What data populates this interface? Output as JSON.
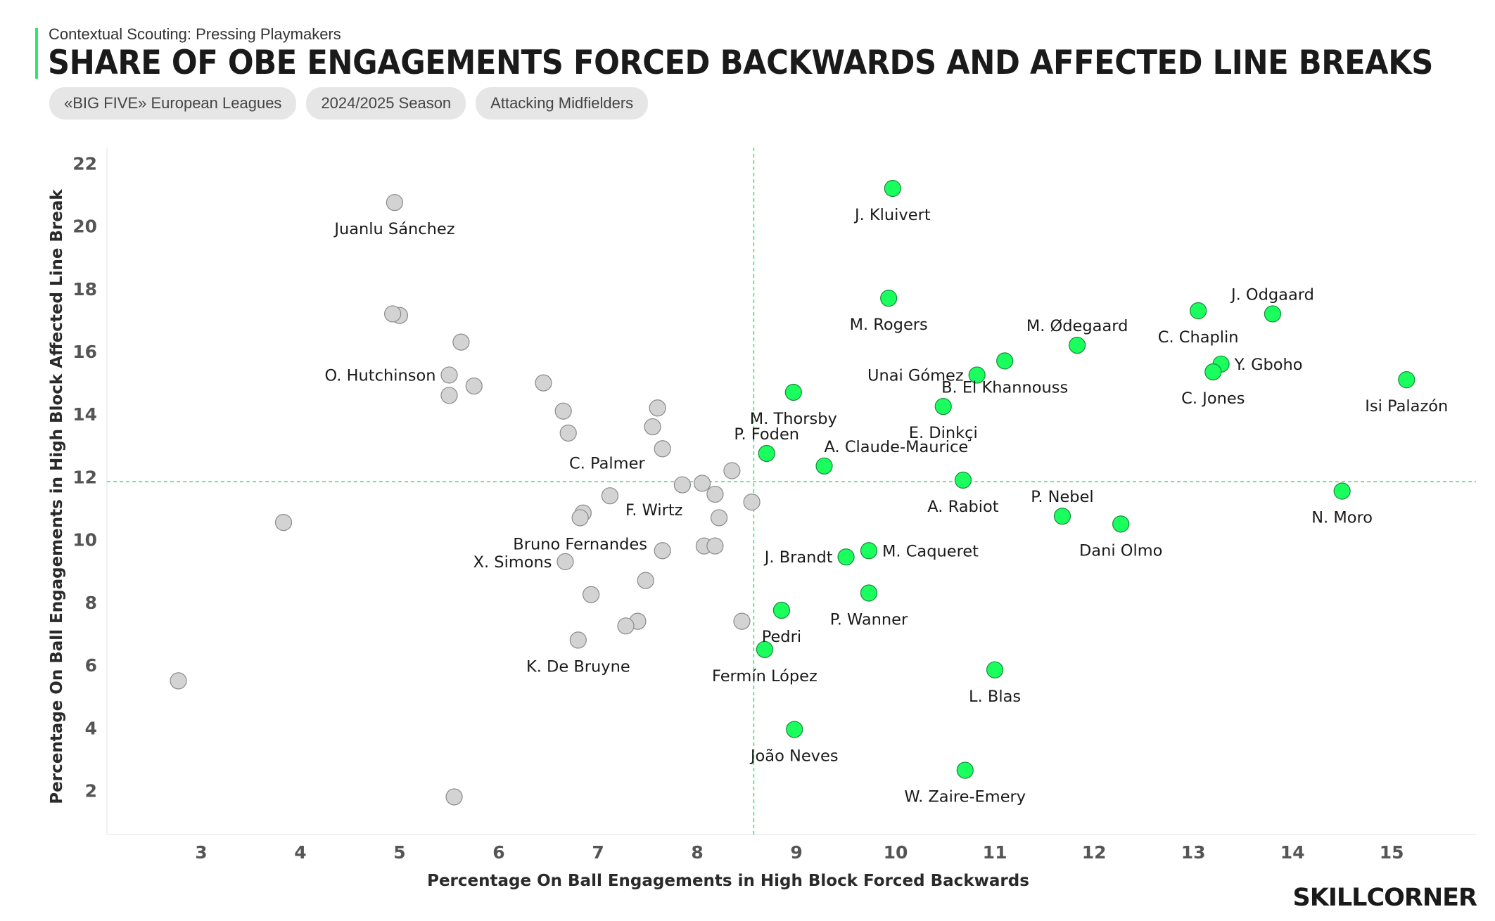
{
  "header": {
    "subtitle": "Contextual Scouting: Pressing Playmakers",
    "title": "SHARE OF OBE ENGAGEMENTS FORCED BACKWARDS AND AFFECTED LINE BREAKS",
    "tags": [
      "«BIG FIVE» European Leagues",
      "2024/2025 Season",
      "Attacking Midfielders"
    ],
    "brand": "SKILLCORNER"
  },
  "colors": {
    "highlight": "#1aff5e",
    "highlight_stroke": "#148a3a",
    "base": "#d3d3d3",
    "base_stroke": "#8a8a8a",
    "reference_line": "#2ee86b"
  },
  "chart_data": {
    "type": "scatter",
    "xlabel": "Percentage On Ball Engagements in High Block Forced Backwards",
    "ylabel": "Percentage On Ball Engagements in High Block Affected Line Break",
    "xlim": [
      2.05,
      15.85
    ],
    "ylim": [
      0.6,
      22.5
    ],
    "xticks": [
      3,
      4,
      5,
      6,
      7,
      8,
      9,
      10,
      11,
      12,
      13,
      14,
      15
    ],
    "yticks": [
      2,
      4,
      6,
      8,
      10,
      12,
      14,
      16,
      18,
      20,
      22
    ],
    "reference_lines": {
      "x": 8.57,
      "y": 11.85
    },
    "grid": false,
    "points": [
      {
        "x": 9.97,
        "y": 21.2,
        "label": "J. Kluivert",
        "highlight": true,
        "lpos": "below"
      },
      {
        "x": 9.93,
        "y": 17.7,
        "label": "M. Rogers",
        "highlight": true,
        "lpos": "below"
      },
      {
        "x": 13.8,
        "y": 17.2,
        "label": "J. Odgaard",
        "highlight": true,
        "lpos": "above"
      },
      {
        "x": 13.05,
        "y": 17.3,
        "label": "C. Chaplin",
        "highlight": true,
        "lpos": "below"
      },
      {
        "x": 11.83,
        "y": 16.2,
        "label": "M. Ødegaard",
        "highlight": true,
        "lpos": "above"
      },
      {
        "x": 13.28,
        "y": 15.6,
        "label": "Y. Gboho",
        "highlight": true,
        "lpos": "right"
      },
      {
        "x": 13.2,
        "y": 15.35,
        "label": "C. Jones",
        "highlight": true,
        "lpos": "below"
      },
      {
        "x": 15.15,
        "y": 15.1,
        "label": "Isi Palazón",
        "highlight": true,
        "lpos": "below"
      },
      {
        "x": 10.82,
        "y": 15.25,
        "label": "Unai Gómez",
        "highlight": true,
        "lpos": "left"
      },
      {
        "x": 11.1,
        "y": 15.7,
        "label": "B. El Khannouss",
        "highlight": true,
        "lpos": "below"
      },
      {
        "x": 8.97,
        "y": 14.7,
        "label": "M. Thorsby",
        "highlight": true,
        "lpos": "below"
      },
      {
        "x": 10.48,
        "y": 14.25,
        "label": "E. Dinkçi",
        "highlight": true,
        "lpos": "below"
      },
      {
        "x": 8.7,
        "y": 12.75,
        "label": "P. Foden",
        "highlight": true,
        "lpos": "above"
      },
      {
        "x": 9.28,
        "y": 12.35,
        "label": "A. Claude-Maurice",
        "highlight": true,
        "lpos": "aboveright"
      },
      {
        "x": 10.68,
        "y": 11.9,
        "label": "A. Rabiot",
        "highlight": true,
        "lpos": "below"
      },
      {
        "x": 14.5,
        "y": 11.55,
        "label": "N. Moro",
        "highlight": true,
        "lpos": "below"
      },
      {
        "x": 11.68,
        "y": 10.75,
        "label": "P. Nebel",
        "highlight": true,
        "lpos": "above"
      },
      {
        "x": 12.27,
        "y": 10.5,
        "label": "Dani Olmo",
        "highlight": true,
        "lpos": "below"
      },
      {
        "x": 9.73,
        "y": 9.65,
        "label": "M. Caqueret",
        "highlight": true,
        "lpos": "right"
      },
      {
        "x": 9.5,
        "y": 9.45,
        "label": "J. Brandt",
        "highlight": true,
        "lpos": "left"
      },
      {
        "x": 9.73,
        "y": 8.3,
        "label": "P. Wanner",
        "highlight": true,
        "lpos": "below"
      },
      {
        "x": 8.85,
        "y": 7.75,
        "label": "Pedri",
        "highlight": true,
        "lpos": "below"
      },
      {
        "x": 8.68,
        "y": 6.5,
        "label": "Fermín López",
        "highlight": true,
        "lpos": "below"
      },
      {
        "x": 11.0,
        "y": 5.85,
        "label": "L. Blas",
        "highlight": true,
        "lpos": "below"
      },
      {
        "x": 8.98,
        "y": 3.95,
        "label": "João Neves",
        "highlight": true,
        "lpos": "below"
      },
      {
        "x": 10.7,
        "y": 2.65,
        "label": "W. Zaire-Emery",
        "highlight": true,
        "lpos": "below"
      },
      {
        "x": 4.95,
        "y": 20.75,
        "label": "Juanlu Sánchez",
        "highlight": false,
        "lpos": "below"
      },
      {
        "x": 5.0,
        "y": 17.15,
        "label": "",
        "highlight": false,
        "lpos": "none"
      },
      {
        "x": 4.93,
        "y": 17.2,
        "label": "",
        "highlight": false,
        "lpos": "none"
      },
      {
        "x": 5.62,
        "y": 16.3,
        "label": "",
        "highlight": false,
        "lpos": "none"
      },
      {
        "x": 5.5,
        "y": 15.25,
        "label": "O. Hutchinson",
        "highlight": false,
        "lpos": "left"
      },
      {
        "x": 5.75,
        "y": 14.9,
        "label": "",
        "highlight": false,
        "lpos": "none"
      },
      {
        "x": 5.5,
        "y": 14.6,
        "label": "",
        "highlight": false,
        "lpos": "none"
      },
      {
        "x": 6.45,
        "y": 15.0,
        "label": "",
        "highlight": false,
        "lpos": "none"
      },
      {
        "x": 6.65,
        "y": 14.1,
        "label": "",
        "highlight": false,
        "lpos": "none"
      },
      {
        "x": 6.7,
        "y": 13.4,
        "label": "",
        "highlight": false,
        "lpos": "none"
      },
      {
        "x": 7.6,
        "y": 14.2,
        "label": "",
        "highlight": false,
        "lpos": "none"
      },
      {
        "x": 7.55,
        "y": 13.6,
        "label": "",
        "highlight": false,
        "lpos": "none"
      },
      {
        "x": 7.65,
        "y": 12.9,
        "label": "C. Palmer",
        "highlight": false,
        "lpos": "belowleft"
      },
      {
        "x": 8.35,
        "y": 12.2,
        "label": "",
        "highlight": false,
        "lpos": "none"
      },
      {
        "x": 7.85,
        "y": 11.75,
        "label": "",
        "highlight": false,
        "lpos": "none"
      },
      {
        "x": 8.05,
        "y": 11.8,
        "label": "",
        "highlight": false,
        "lpos": "none"
      },
      {
        "x": 8.18,
        "y": 11.45,
        "label": "",
        "highlight": false,
        "lpos": "none"
      },
      {
        "x": 8.55,
        "y": 11.2,
        "label": "",
        "highlight": false,
        "lpos": "none"
      },
      {
        "x": 7.12,
        "y": 11.4,
        "label": "F. Wirtz",
        "highlight": false,
        "lpos": "belowright"
      },
      {
        "x": 6.85,
        "y": 10.85,
        "label": "",
        "highlight": false,
        "lpos": "none"
      },
      {
        "x": 6.82,
        "y": 10.7,
        "label": "Bruno Fernandes",
        "highlight": false,
        "lpos": "below"
      },
      {
        "x": 8.22,
        "y": 10.7,
        "label": "",
        "highlight": false,
        "lpos": "none"
      },
      {
        "x": 7.65,
        "y": 9.65,
        "label": "",
        "highlight": false,
        "lpos": "none"
      },
      {
        "x": 8.07,
        "y": 9.8,
        "label": "",
        "highlight": false,
        "lpos": "none"
      },
      {
        "x": 8.18,
        "y": 9.8,
        "label": "",
        "highlight": false,
        "lpos": "none"
      },
      {
        "x": 6.67,
        "y": 9.3,
        "label": "X. Simons",
        "highlight": false,
        "lpos": "left"
      },
      {
        "x": 7.48,
        "y": 8.7,
        "label": "",
        "highlight": false,
        "lpos": "none"
      },
      {
        "x": 6.93,
        "y": 8.25,
        "label": "",
        "highlight": false,
        "lpos": "none"
      },
      {
        "x": 7.4,
        "y": 7.4,
        "label": "",
        "highlight": false,
        "lpos": "none"
      },
      {
        "x": 7.28,
        "y": 7.25,
        "label": "",
        "highlight": false,
        "lpos": "none"
      },
      {
        "x": 8.45,
        "y": 7.4,
        "label": "",
        "highlight": false,
        "lpos": "none"
      },
      {
        "x": 6.8,
        "y": 6.8,
        "label": "K. De Bruyne",
        "highlight": false,
        "lpos": "below"
      },
      {
        "x": 3.83,
        "y": 10.55,
        "label": "",
        "highlight": false,
        "lpos": "none"
      },
      {
        "x": 2.77,
        "y": 5.5,
        "label": "",
        "highlight": false,
        "lpos": "none"
      },
      {
        "x": 5.55,
        "y": 1.8,
        "label": "",
        "highlight": false,
        "lpos": "none"
      }
    ]
  }
}
